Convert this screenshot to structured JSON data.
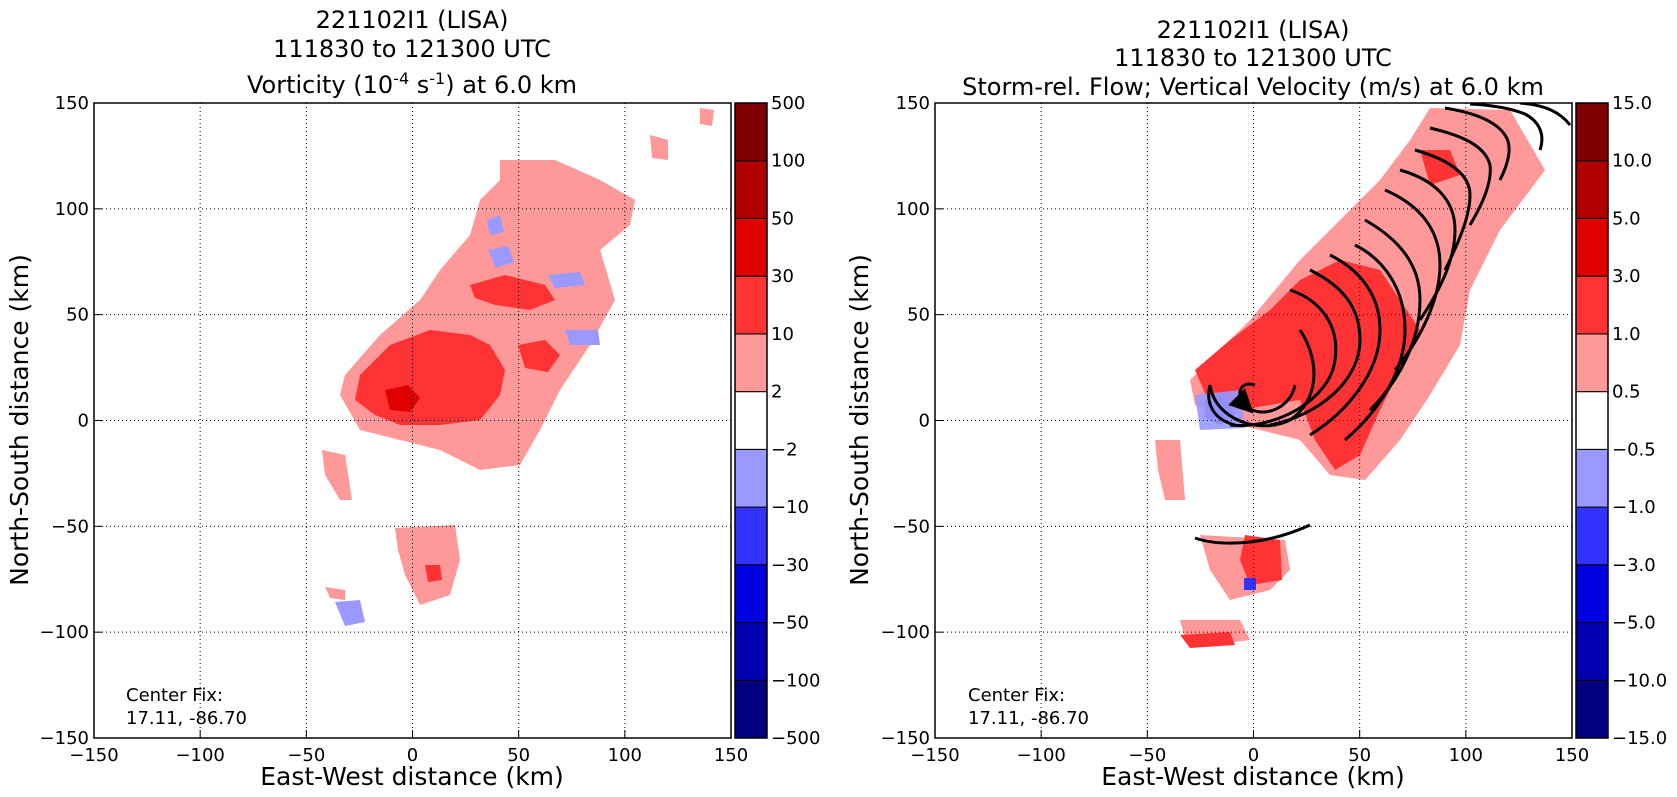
{
  "colorbar_colors": [
    "#000080",
    "#0000b0",
    "#0000e0",
    "#3333ff",
    "#9999ff",
    "#ffffff",
    "#ff9999",
    "#ff3333",
    "#e00000",
    "#b00000",
    "#800000"
  ],
  "chart_data": [
    {
      "type": "heatmap",
      "title_lines": [
        "221102I1 (LISA)",
        "111830 to 121300 UTC"
      ],
      "title_main": "Vorticity (10",
      "title_sup1": "-4",
      "title_mid": " s",
      "title_sup2": "-1",
      "title_end": ") at 6.0 km",
      "xlabel": "East-West distance (km)",
      "ylabel": "North-South distance (km)",
      "xlim": [
        -150,
        150
      ],
      "ylim": [
        -150,
        150
      ],
      "xticks": [
        -150,
        -100,
        -50,
        0,
        50,
        100,
        150
      ],
      "yticks": [
        -150,
        -100,
        -50,
        0,
        50,
        100,
        150
      ],
      "grid": true,
      "colorbar_levels": [
        "-500",
        "-100",
        "-50",
        "-30",
        "-10",
        "-2",
        "2",
        "10",
        "30",
        "50",
        "100",
        "500"
      ],
      "annotation": [
        "Center Fix:",
        "17.11, -86.70"
      ]
    },
    {
      "type": "heatmap",
      "title_lines": [
        "221102I1 (LISA)",
        "111830 to 121300 UTC"
      ],
      "title_main": "Storm-rel. Flow; Vertical Velocity (m/s) at 6.0 km",
      "xlabel": "East-West distance (km)",
      "ylabel": "North-South distance (km)",
      "xlim": [
        -150,
        150
      ],
      "ylim": [
        -150,
        150
      ],
      "xticks": [
        -150,
        -100,
        -50,
        0,
        50,
        100,
        150
      ],
      "yticks": [
        -150,
        -100,
        -50,
        0,
        50,
        100,
        150
      ],
      "grid": true,
      "colorbar_levels": [
        "-15.0",
        "-10.0",
        "-5.0",
        "-3.0",
        "-1.0",
        "-0.5",
        "0.5",
        "1.0",
        "3.0",
        "5.0",
        "10.0",
        "15.0"
      ],
      "annotation": [
        "Center Fix:",
        "17.11, -86.70"
      ]
    }
  ]
}
